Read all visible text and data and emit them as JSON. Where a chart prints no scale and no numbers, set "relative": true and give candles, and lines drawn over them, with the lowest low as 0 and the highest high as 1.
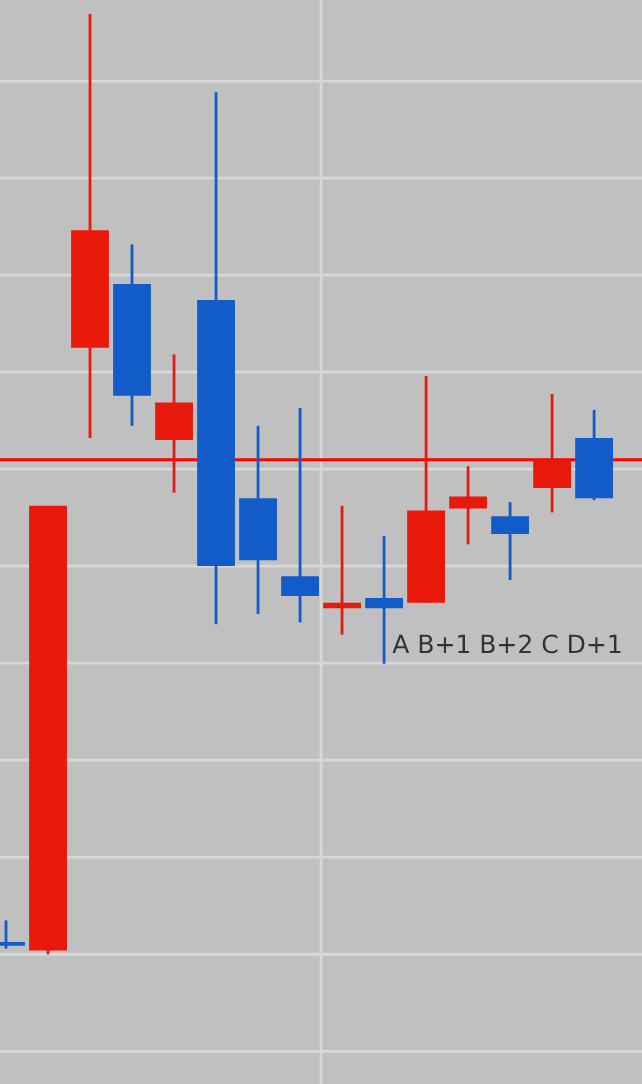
{
  "chart_data": {
    "type": "candlestick",
    "relative": true,
    "categories": [
      null,
      null,
      null,
      null,
      null,
      null,
      null,
      null,
      null,
      null,
      null,
      null,
      null,
      null,
      null
    ],
    "ohlc": [
      [
        0.013,
        0.036,
        0.006,
        0.009
      ],
      [
        0.004,
        0.477,
        0,
        0.477
      ],
      [
        0.645,
        1,
        0.549,
        0.77
      ],
      [
        0.713,
        0.755,
        0.562,
        0.594
      ],
      [
        0.547,
        0.638,
        0.491,
        0.587
      ],
      [
        0.696,
        0.917,
        0.351,
        0.413
      ],
      [
        0.485,
        0.562,
        0.362,
        0.419
      ],
      [
        0.402,
        0.581,
        0.353,
        0.381
      ],
      [
        0.368,
        0.477,
        0.34,
        0.374
      ],
      [
        0.379,
        0.445,
        0.309,
        0.368
      ],
      [
        0.374,
        0.615,
        0.374,
        0.472
      ],
      [
        0.474,
        0.519,
        0.436,
        0.487
      ],
      [
        0.466,
        0.481,
        0.398,
        0.447
      ],
      [
        0.496,
        0.596,
        0.47,
        0.526
      ],
      [
        0.549,
        0.579,
        0.483,
        0.485
      ]
    ],
    "colors": [
      "#115cc8",
      "#e8190a",
      "#e8190a",
      "#115cc8",
      "#e8190a",
      "#115cc8",
      "#115cc8",
      "#115cc8",
      "#e8190a",
      "#115cc8",
      "#e8190a",
      "#e8190a",
      "#115cc8",
      "#e8190a",
      "#115cc8"
    ],
    "ref_lines": [
      {
        "axis": "y",
        "value": 0.526,
        "color": "#ff0000"
      }
    ],
    "annotations": [
      "A B+1 B+2 C D+1"
    ],
    "grid": true
  }
}
